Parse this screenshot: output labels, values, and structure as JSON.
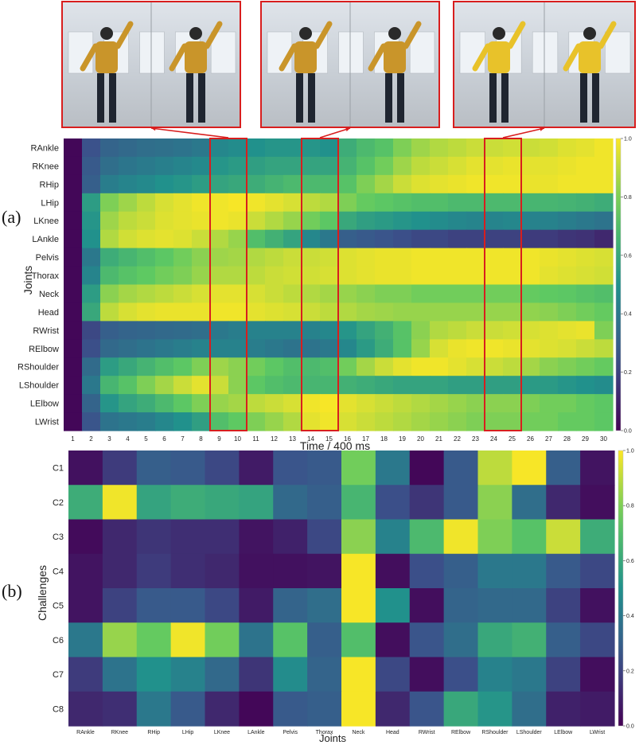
{
  "figure": {
    "panel_a_label": "(a)",
    "panel_b_label": "(b)",
    "colormap": "viridis",
    "highlight_color": "#d81e1e",
    "photo_pairs": [
      {
        "photo_name": "dance-frames-high-kick",
        "linked_time_columns": [
          "9",
          "10"
        ]
      },
      {
        "photo_name": "dance-frames-arm-raise",
        "linked_time_columns": [
          "14",
          "15"
        ]
      },
      {
        "photo_name": "dance-frames-arm-swing",
        "linked_time_columns": [
          "24",
          "25"
        ]
      }
    ]
  },
  "chart_data": [
    {
      "type": "heatmap",
      "title": "",
      "xlabel": "Time / 400 ms",
      "ylabel": "Joints",
      "x": [
        "1",
        "2",
        "3",
        "4",
        "5",
        "6",
        "7",
        "8",
        "9",
        "10",
        "11",
        "12",
        "13",
        "14",
        "15",
        "16",
        "17",
        "18",
        "19",
        "20",
        "21",
        "22",
        "23",
        "24",
        "25",
        "26",
        "27",
        "28",
        "29",
        "30"
      ],
      "y": [
        "RAnkle",
        "RKnee",
        "RHip",
        "LHip",
        "LKnee",
        "LAnkle",
        "Pelvis",
        "Thorax",
        "Neck",
        "Head",
        "RWrist",
        "RElbow",
        "RShoulder",
        "LShoulder",
        "LElbow",
        "LWrist"
      ],
      "colorbar": {
        "min": 0.0,
        "max": 1.0,
        "ticks": [
          "0.0",
          "0.2",
          "0.4",
          "0.6",
          "0.8",
          "1.0"
        ]
      },
      "highlighted_columns": [
        [
          "9",
          "10"
        ],
        [
          "14",
          "15"
        ],
        [
          "24",
          "25"
        ]
      ],
      "values": [
        [
          0.02,
          0.25,
          0.32,
          0.34,
          0.36,
          0.37,
          0.38,
          0.4,
          0.46,
          0.48,
          0.5,
          0.52,
          0.52,
          0.52,
          0.5,
          0.62,
          0.68,
          0.72,
          0.8,
          0.85,
          0.88,
          0.9,
          0.92,
          0.92,
          0.93,
          0.92,
          0.93,
          0.95,
          0.96,
          0.98
        ],
        [
          0.02,
          0.28,
          0.36,
          0.39,
          0.41,
          0.43,
          0.45,
          0.47,
          0.52,
          0.54,
          0.56,
          0.58,
          0.58,
          0.58,
          0.58,
          0.65,
          0.72,
          0.78,
          0.85,
          0.9,
          0.92,
          0.94,
          0.96,
          0.96,
          0.97,
          0.96,
          0.96,
          0.97,
          0.98,
          0.98
        ],
        [
          0.02,
          0.3,
          0.42,
          0.45,
          0.47,
          0.5,
          0.52,
          0.55,
          0.58,
          0.6,
          0.62,
          0.65,
          0.68,
          0.68,
          0.68,
          0.72,
          0.8,
          0.86,
          0.92,
          0.95,
          0.96,
          0.97,
          0.98,
          0.98,
          0.98,
          0.97,
          0.97,
          0.98,
          0.98,
          0.98
        ],
        [
          0.02,
          0.55,
          0.8,
          0.85,
          0.9,
          0.94,
          0.96,
          0.98,
          0.98,
          0.99,
          0.98,
          0.96,
          0.94,
          0.9,
          0.88,
          0.8,
          0.76,
          0.74,
          0.72,
          0.7,
          0.7,
          0.68,
          0.68,
          0.68,
          0.68,
          0.66,
          0.66,
          0.65,
          0.64,
          0.62
        ],
        [
          0.02,
          0.52,
          0.85,
          0.9,
          0.92,
          0.95,
          0.96,
          0.97,
          0.98,
          0.97,
          0.92,
          0.88,
          0.84,
          0.78,
          0.74,
          0.6,
          0.56,
          0.54,
          0.52,
          0.5,
          0.48,
          0.46,
          0.45,
          0.45,
          0.46,
          0.44,
          0.44,
          0.42,
          0.4,
          0.38
        ],
        [
          0.02,
          0.5,
          0.88,
          0.93,
          0.95,
          0.96,
          0.95,
          0.92,
          0.88,
          0.84,
          0.7,
          0.64,
          0.58,
          0.46,
          0.4,
          0.3,
          0.28,
          0.26,
          0.24,
          0.22,
          0.22,
          0.2,
          0.2,
          0.2,
          0.2,
          0.18,
          0.18,
          0.16,
          0.15,
          0.12
        ],
        [
          0.02,
          0.4,
          0.62,
          0.66,
          0.7,
          0.74,
          0.78,
          0.82,
          0.85,
          0.86,
          0.88,
          0.9,
          0.92,
          0.92,
          0.93,
          0.95,
          0.96,
          0.97,
          0.97,
          0.98,
          0.98,
          0.98,
          0.98,
          0.98,
          0.98,
          0.98,
          0.97,
          0.96,
          0.95,
          0.94
        ],
        [
          0.02,
          0.45,
          0.68,
          0.72,
          0.75,
          0.78,
          0.8,
          0.84,
          0.88,
          0.88,
          0.9,
          0.92,
          0.93,
          0.93,
          0.94,
          0.95,
          0.96,
          0.97,
          0.97,
          0.98,
          0.98,
          0.98,
          0.98,
          0.98,
          0.98,
          0.98,
          0.96,
          0.95,
          0.94,
          0.93
        ],
        [
          0.02,
          0.55,
          0.82,
          0.86,
          0.88,
          0.9,
          0.92,
          0.94,
          0.96,
          0.96,
          0.94,
          0.92,
          0.9,
          0.88,
          0.86,
          0.84,
          0.82,
          0.8,
          0.8,
          0.78,
          0.78,
          0.78,
          0.78,
          0.78,
          0.78,
          0.76,
          0.75,
          0.74,
          0.72,
          0.7
        ],
        [
          0.02,
          0.6,
          0.9,
          0.94,
          0.96,
          0.97,
          0.97,
          0.97,
          0.98,
          0.98,
          0.96,
          0.95,
          0.94,
          0.92,
          0.9,
          0.88,
          0.86,
          0.85,
          0.84,
          0.84,
          0.84,
          0.84,
          0.84,
          0.84,
          0.84,
          0.83,
          0.82,
          0.8,
          0.78,
          0.76
        ],
        [
          0.02,
          0.22,
          0.3,
          0.32,
          0.33,
          0.34,
          0.35,
          0.36,
          0.4,
          0.42,
          0.44,
          0.44,
          0.44,
          0.44,
          0.46,
          0.52,
          0.58,
          0.64,
          0.72,
          0.82,
          0.88,
          0.9,
          0.92,
          0.92,
          0.93,
          0.94,
          0.95,
          0.96,
          0.97,
          0.8
        ],
        [
          0.02,
          0.24,
          0.34,
          0.36,
          0.38,
          0.4,
          0.42,
          0.44,
          0.44,
          0.44,
          0.42,
          0.4,
          0.38,
          0.38,
          0.4,
          0.46,
          0.54,
          0.62,
          0.72,
          0.84,
          0.94,
          0.97,
          0.98,
          0.98,
          0.97,
          0.96,
          0.95,
          0.94,
          0.92,
          0.9
        ],
        [
          0.02,
          0.35,
          0.55,
          0.6,
          0.65,
          0.7,
          0.74,
          0.8,
          0.85,
          0.82,
          0.78,
          0.74,
          0.7,
          0.68,
          0.7,
          0.78,
          0.86,
          0.92,
          0.96,
          0.98,
          0.98,
          0.96,
          0.94,
          0.92,
          0.9,
          0.86,
          0.82,
          0.8,
          0.78,
          0.76
        ],
        [
          0.02,
          0.4,
          0.66,
          0.72,
          0.8,
          0.86,
          0.92,
          0.96,
          0.92,
          0.82,
          0.74,
          0.7,
          0.68,
          0.66,
          0.66,
          0.64,
          0.62,
          0.6,
          0.58,
          0.58,
          0.58,
          0.56,
          0.56,
          0.56,
          0.56,
          0.54,
          0.54,
          0.52,
          0.5,
          0.48
        ],
        [
          0.02,
          0.32,
          0.52,
          0.58,
          0.62,
          0.68,
          0.74,
          0.8,
          0.84,
          0.86,
          0.9,
          0.92,
          0.94,
          0.98,
          0.99,
          0.96,
          0.94,
          0.92,
          0.9,
          0.88,
          0.86,
          0.84,
          0.82,
          0.82,
          0.82,
          0.8,
          0.78,
          0.78,
          0.76,
          0.74
        ],
        [
          0.02,
          0.26,
          0.38,
          0.4,
          0.42,
          0.46,
          0.5,
          0.56,
          0.7,
          0.75,
          0.8,
          0.84,
          0.88,
          0.96,
          0.98,
          0.94,
          0.92,
          0.9,
          0.88,
          0.86,
          0.84,
          0.82,
          0.8,
          0.8,
          0.8,
          0.78,
          0.78,
          0.76,
          0.76,
          0.74
        ]
      ]
    },
    {
      "type": "heatmap",
      "title": "",
      "xlabel": "Joints",
      "ylabel": "Challenges",
      "x": [
        "RAnkle",
        "RKnee",
        "RHip",
        "LHip",
        "LKnee",
        "LAnkle",
        "Pelvis",
        "Thorax",
        "Neck",
        "Head",
        "RWrist",
        "RElbow",
        "RShoulder",
        "LShoulder",
        "LElbow",
        "LWrist"
      ],
      "y": [
        "C1",
        "C2",
        "C3",
        "C4",
        "C5",
        "C6",
        "C7",
        "C8"
      ],
      "colorbar": {
        "min": 0.0,
        "max": 1.0,
        "ticks": [
          "0.0",
          "0.2",
          "0.4",
          "0.6",
          "0.8",
          "1.0"
        ]
      },
      "values": [
        [
          0.05,
          0.18,
          0.3,
          0.28,
          0.22,
          0.08,
          0.26,
          0.28,
          0.78,
          0.4,
          0.02,
          0.28,
          0.9,
          0.99,
          0.3,
          0.06
        ],
        [
          0.62,
          0.98,
          0.58,
          0.62,
          0.6,
          0.58,
          0.34,
          0.3,
          0.66,
          0.24,
          0.16,
          0.28,
          0.82,
          0.36,
          0.12,
          0.04
        ],
        [
          0.03,
          0.12,
          0.16,
          0.14,
          0.14,
          0.06,
          0.1,
          0.22,
          0.82,
          0.44,
          0.68,
          0.98,
          0.8,
          0.72,
          0.92,
          0.62
        ],
        [
          0.06,
          0.12,
          0.18,
          0.14,
          0.12,
          0.05,
          0.05,
          0.06,
          0.99,
          0.04,
          0.24,
          0.3,
          0.4,
          0.4,
          0.28,
          0.22
        ],
        [
          0.06,
          0.2,
          0.28,
          0.28,
          0.22,
          0.08,
          0.32,
          0.36,
          0.99,
          0.5,
          0.04,
          0.32,
          0.34,
          0.34,
          0.2,
          0.05
        ],
        [
          0.4,
          0.84,
          0.76,
          0.98,
          0.78,
          0.38,
          0.72,
          0.3,
          0.7,
          0.04,
          0.26,
          0.36,
          0.6,
          0.64,
          0.3,
          0.22
        ],
        [
          0.18,
          0.38,
          0.5,
          0.44,
          0.34,
          0.16,
          0.48,
          0.32,
          0.99,
          0.22,
          0.04,
          0.24,
          0.44,
          0.4,
          0.2,
          0.04
        ],
        [
          0.12,
          0.14,
          0.4,
          0.28,
          0.12,
          0.02,
          0.28,
          0.3,
          0.99,
          0.12,
          0.26,
          0.6,
          0.52,
          0.36,
          0.1,
          0.08
        ]
      ]
    }
  ]
}
